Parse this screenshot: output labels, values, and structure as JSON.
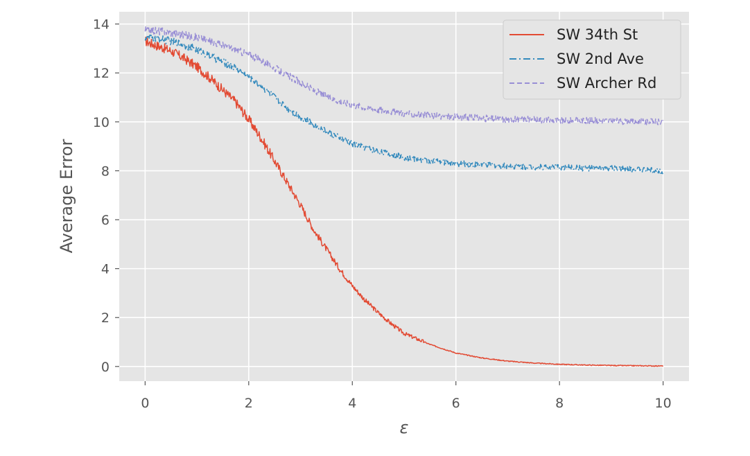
{
  "chart_data": {
    "type": "line",
    "title": "",
    "xlabel": "ε",
    "ylabel": "Average Error",
    "xlim": [
      -0.5,
      10.5
    ],
    "ylim": [
      -0.6,
      14.5
    ],
    "xticks": [
      0,
      2,
      4,
      6,
      8,
      10
    ],
    "yticks": [
      0,
      2,
      4,
      6,
      8,
      10,
      12,
      14
    ],
    "grid": true,
    "legend_position": "top-right",
    "background": "#e5e5e5",
    "series": [
      {
        "name": "SW 34th St",
        "color": "#e24a33",
        "line_style": "solid",
        "x": [
          0,
          0.25,
          0.5,
          0.75,
          1.0,
          1.25,
          1.5,
          1.75,
          2.0,
          2.25,
          2.5,
          2.75,
          3.0,
          3.25,
          3.5,
          3.75,
          4.0,
          4.25,
          4.5,
          4.75,
          5.0,
          5.5,
          6.0,
          6.5,
          7.0,
          7.5,
          8.0,
          8.5,
          9.0,
          9.5,
          10.0
        ],
        "y": [
          13.3,
          13.1,
          12.9,
          12.6,
          12.25,
          11.8,
          11.3,
          10.8,
          10.1,
          9.3,
          8.4,
          7.5,
          6.6,
          5.6,
          4.8,
          4.0,
          3.3,
          2.7,
          2.2,
          1.75,
          1.35,
          0.9,
          0.55,
          0.35,
          0.22,
          0.14,
          0.09,
          0.06,
          0.04,
          0.03,
          0.02
        ]
      },
      {
        "name": "SW 2nd Ave",
        "color": "#348abd",
        "line_style": "dashdot",
        "x": [
          0,
          0.25,
          0.5,
          0.75,
          1.0,
          1.25,
          1.5,
          1.75,
          2.0,
          2.25,
          2.5,
          2.75,
          3.0,
          3.25,
          3.5,
          3.75,
          4.0,
          4.5,
          5.0,
          5.5,
          6.0,
          6.5,
          7.0,
          7.5,
          8.0,
          8.5,
          9.0,
          9.5,
          10.0
        ],
        "y": [
          13.45,
          13.4,
          13.3,
          13.15,
          12.95,
          12.7,
          12.45,
          12.2,
          11.85,
          11.45,
          11.0,
          10.55,
          10.2,
          9.9,
          9.6,
          9.35,
          9.1,
          8.8,
          8.55,
          8.4,
          8.3,
          8.25,
          8.2,
          8.15,
          8.15,
          8.1,
          8.1,
          8.05,
          8.0
        ]
      },
      {
        "name": "SW Archer Rd",
        "color": "#988ed5",
        "line_style": "dashed",
        "x": [
          0,
          0.25,
          0.5,
          0.75,
          1.0,
          1.25,
          1.5,
          1.75,
          2.0,
          2.25,
          2.5,
          2.75,
          3.0,
          3.25,
          3.5,
          3.75,
          4.0,
          4.5,
          5.0,
          5.5,
          6.0,
          6.5,
          7.0,
          7.5,
          8.0,
          8.5,
          9.0,
          9.5,
          10.0
        ],
        "y": [
          13.75,
          13.72,
          13.65,
          13.55,
          13.45,
          13.3,
          13.15,
          12.95,
          12.75,
          12.5,
          12.2,
          11.9,
          11.6,
          11.3,
          11.05,
          10.85,
          10.7,
          10.5,
          10.35,
          10.25,
          10.2,
          10.15,
          10.1,
          10.1,
          10.05,
          10.05,
          10.05,
          10.0,
          10.0
        ]
      }
    ]
  }
}
